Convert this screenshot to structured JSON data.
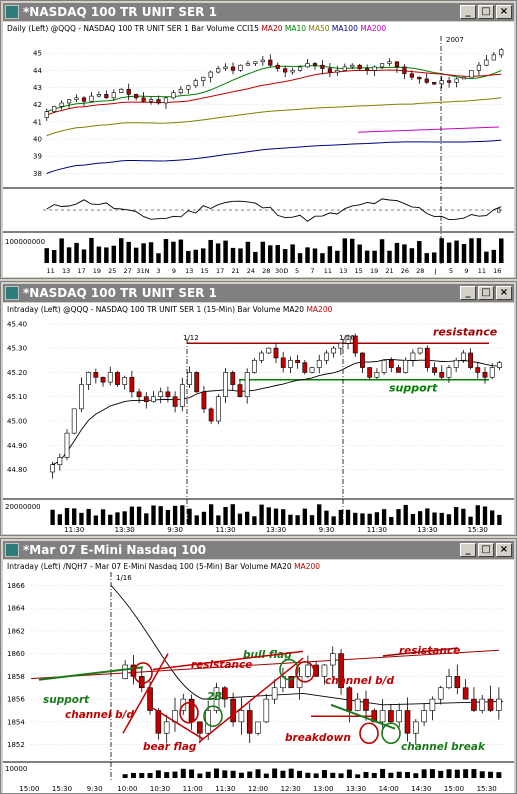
{
  "windows": [
    {
      "title": "*NASDAQ 100 TR UNIT SER 1",
      "legend": [
        {
          "text": "Daily  (Left)   @QQQ - NASDAQ 100 TR UNIT SER 1  Bar  Volume  CCI15",
          "color": "#000000"
        },
        {
          "text": "MA20",
          "color": "#c00000"
        },
        {
          "text": "MA10",
          "color": "#008000"
        },
        {
          "text": "MA50",
          "color": "#808000"
        },
        {
          "text": "MA100",
          "color": "#000080"
        },
        {
          "text": "MA200",
          "color": "#c000c0"
        }
      ]
    },
    {
      "title": "*NASDAQ 100 TR UNIT SER 1",
      "legend": [
        {
          "text": "Intraday  (Left)   @QQQ - NASDAQ 100 TR UNIT SER 1  (15-Min)  Bar  Volume  MA20",
          "color": "#000000"
        },
        {
          "text": "MA200",
          "color": "#c00000"
        }
      ]
    },
    {
      "title": "*Mar 07  E-Mini Nasdaq 100",
      "legend": [
        {
          "text": "Intraday  (Left)   /NQH7 - Mar 07  E-Mini Nasdaq 100  (5-Min)  Bar  Volume  MA20",
          "color": "#000000"
        },
        {
          "text": "MA200",
          "color": "#c00000"
        }
      ]
    }
  ],
  "window_buttons": {
    "minimize": "_",
    "maximize": "□",
    "close": "×"
  },
  "chart_data": [
    {
      "type": "candlestick",
      "title": "Daily (Left) @QQQ - NASDAQ 100 TR UNIT SER 1",
      "ylim": [
        37.5,
        46
      ],
      "y_ticks": [
        "45",
        "44",
        "43",
        "42",
        "41",
        "40",
        "39",
        "38"
      ],
      "x_ticks": [
        "11",
        "13",
        "17",
        "19",
        "25",
        "27",
        "31N",
        "3",
        "9",
        "13",
        "15",
        "17",
        "21",
        "24",
        "28",
        "30D",
        "5",
        "7",
        "11",
        "13",
        "15",
        "19",
        "21",
        "26",
        "28",
        "J",
        "5",
        "9",
        "11",
        "16"
      ],
      "period_label": "2007",
      "closes": [
        41.6,
        41.9,
        42.1,
        42.3,
        42.4,
        42.2,
        42.5,
        42.6,
        42.4,
        42.7,
        42.9,
        42.6,
        42.4,
        42.2,
        42.3,
        42.1,
        42.4,
        42.7,
        42.9,
        43.1,
        43.4,
        43.6,
        43.9,
        44.1,
        44.2,
        44.0,
        44.3,
        44.4,
        44.5,
        44.6,
        44.3,
        44.1,
        43.9,
        44.0,
        44.2,
        44.4,
        44.3,
        44.1,
        43.9,
        44.0,
        44.2,
        44.3,
        44.1,
        44.0,
        44.2,
        44.4,
        44.5,
        44.2,
        43.8,
        43.6,
        43.5,
        43.3,
        43.2,
        43.4,
        43.3,
        43.5,
        43.6,
        44.0,
        44.3,
        44.6,
        44.9,
        45.2
      ],
      "ma_lines": [
        "MA10",
        "MA20",
        "MA50",
        "MA100",
        "MA200"
      ],
      "oscillator": {
        "name": "CCI15",
        "zero_label": "0"
      },
      "volume_label": "100000000"
    },
    {
      "type": "candlestick",
      "title": "Intraday (Left) @QQQ - NASDAQ 100 TR UNIT SER 1 (15-Min)",
      "ylim": [
        44.72,
        45.42
      ],
      "y_ticks": [
        "45.40",
        "45.30",
        "45.20",
        "45.10",
        "45.00",
        "44.90",
        "44.80"
      ],
      "x_ticks": [
        "11:30",
        "13:30",
        "9:30",
        "11:30",
        "13:30",
        "9:30",
        "11:30",
        "13:30",
        "15:30"
      ],
      "date_markers": [
        "1/12",
        "1/16"
      ],
      "closes": [
        44.82,
        44.85,
        44.95,
        45.05,
        45.15,
        45.2,
        45.18,
        45.16,
        45.2,
        45.15,
        45.18,
        45.12,
        45.1,
        45.08,
        45.1,
        45.12,
        45.1,
        45.06,
        45.15,
        45.2,
        45.12,
        45.05,
        45.0,
        45.1,
        45.2,
        45.15,
        45.1,
        45.2,
        45.25,
        45.28,
        45.3,
        45.26,
        45.22,
        45.25,
        45.24,
        45.2,
        45.22,
        45.25,
        45.28,
        45.3,
        45.32,
        45.35,
        45.28,
        45.22,
        45.18,
        45.2,
        45.25,
        45.22,
        45.2,
        45.25,
        45.28,
        45.3,
        45.22,
        45.2,
        45.18,
        45.22,
        45.25,
        45.28,
        45.22,
        45.2,
        45.18,
        45.22,
        45.24
      ],
      "levels": [
        {
          "label": "resistance",
          "value": 45.32,
          "color": "#a00000"
        },
        {
          "label": "support",
          "value": 45.17,
          "color": "#008000"
        }
      ],
      "volume_label": "20000000"
    },
    {
      "type": "candlestick",
      "title": "Intraday (Left) /NQH7 - Mar 07 E-Mini Nasdaq 100 (5-Min)",
      "ylim": [
        1851,
        1867
      ],
      "y_ticks": [
        "1866",
        "1864",
        "1862",
        "1860",
        "1858",
        "1856",
        "1854",
        "1852"
      ],
      "x_ticks": [
        "15:00",
        "15:30",
        "9:30",
        "10:00",
        "10:30",
        "11:00",
        "11:30",
        "12:00",
        "12:30",
        "13:00",
        "13:30",
        "14:00",
        "14:30",
        "15:00",
        "15:30"
      ],
      "date_marker": "1/16",
      "closes": [
        1859,
        1858,
        1857,
        1855,
        1853,
        1854,
        1855,
        1856,
        1854,
        1853,
        1855,
        1857,
        1856,
        1854,
        1855,
        1853,
        1854,
        1856,
        1857,
        1858,
        1857,
        1858,
        1859,
        1858,
        1859,
        1860,
        1857,
        1855,
        1856,
        1855,
        1854,
        1855,
        1854,
        1855,
        1853,
        1854,
        1855,
        1856,
        1857,
        1858,
        1857,
        1856,
        1855,
        1856,
        1855,
        1856
      ],
      "annotations": [
        "support",
        "channel b/d",
        "resistance",
        "bull flag",
        "2B",
        "bear flag",
        "channel b/d",
        "resistance",
        "breakdown",
        "channel break"
      ],
      "volume_label": "10000"
    }
  ]
}
